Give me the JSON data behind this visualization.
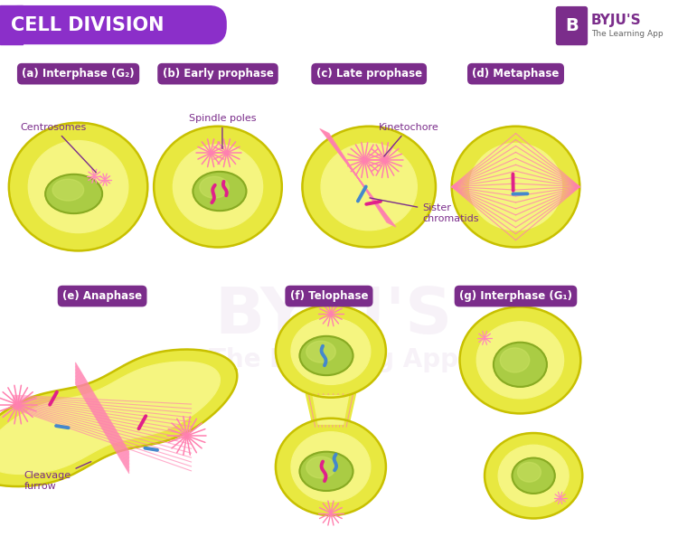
{
  "title": "CELL DIVISION",
  "title_bg": "#8B2FC9",
  "title_text_color": "#FFFFFF",
  "byju_color": "#7B2D8B",
  "background_color": "#FFFFFF",
  "label_bg": "#7B2D8B",
  "label_text_color": "#FFFFFF",
  "cell_fill": "#F5F580",
  "cell_ring": "#E8E840",
  "cell_border": "#C8C000",
  "nucleus_fill": "#AACC44",
  "nucleus_border": "#88AA22",
  "annotation_color": "#7B2D8B",
  "spindle_color": "#FF80B0",
  "chrom_pink": "#E0208A",
  "chrom_blue": "#4488CC",
  "labels": [
    "(a) Interphase (G₂)",
    "(b) Early prophase",
    "(c) Late prophase",
    "(d) Metaphase",
    "(e) Anaphase",
    "(f) Telophase",
    "(g) Interphase (G₁)"
  ]
}
